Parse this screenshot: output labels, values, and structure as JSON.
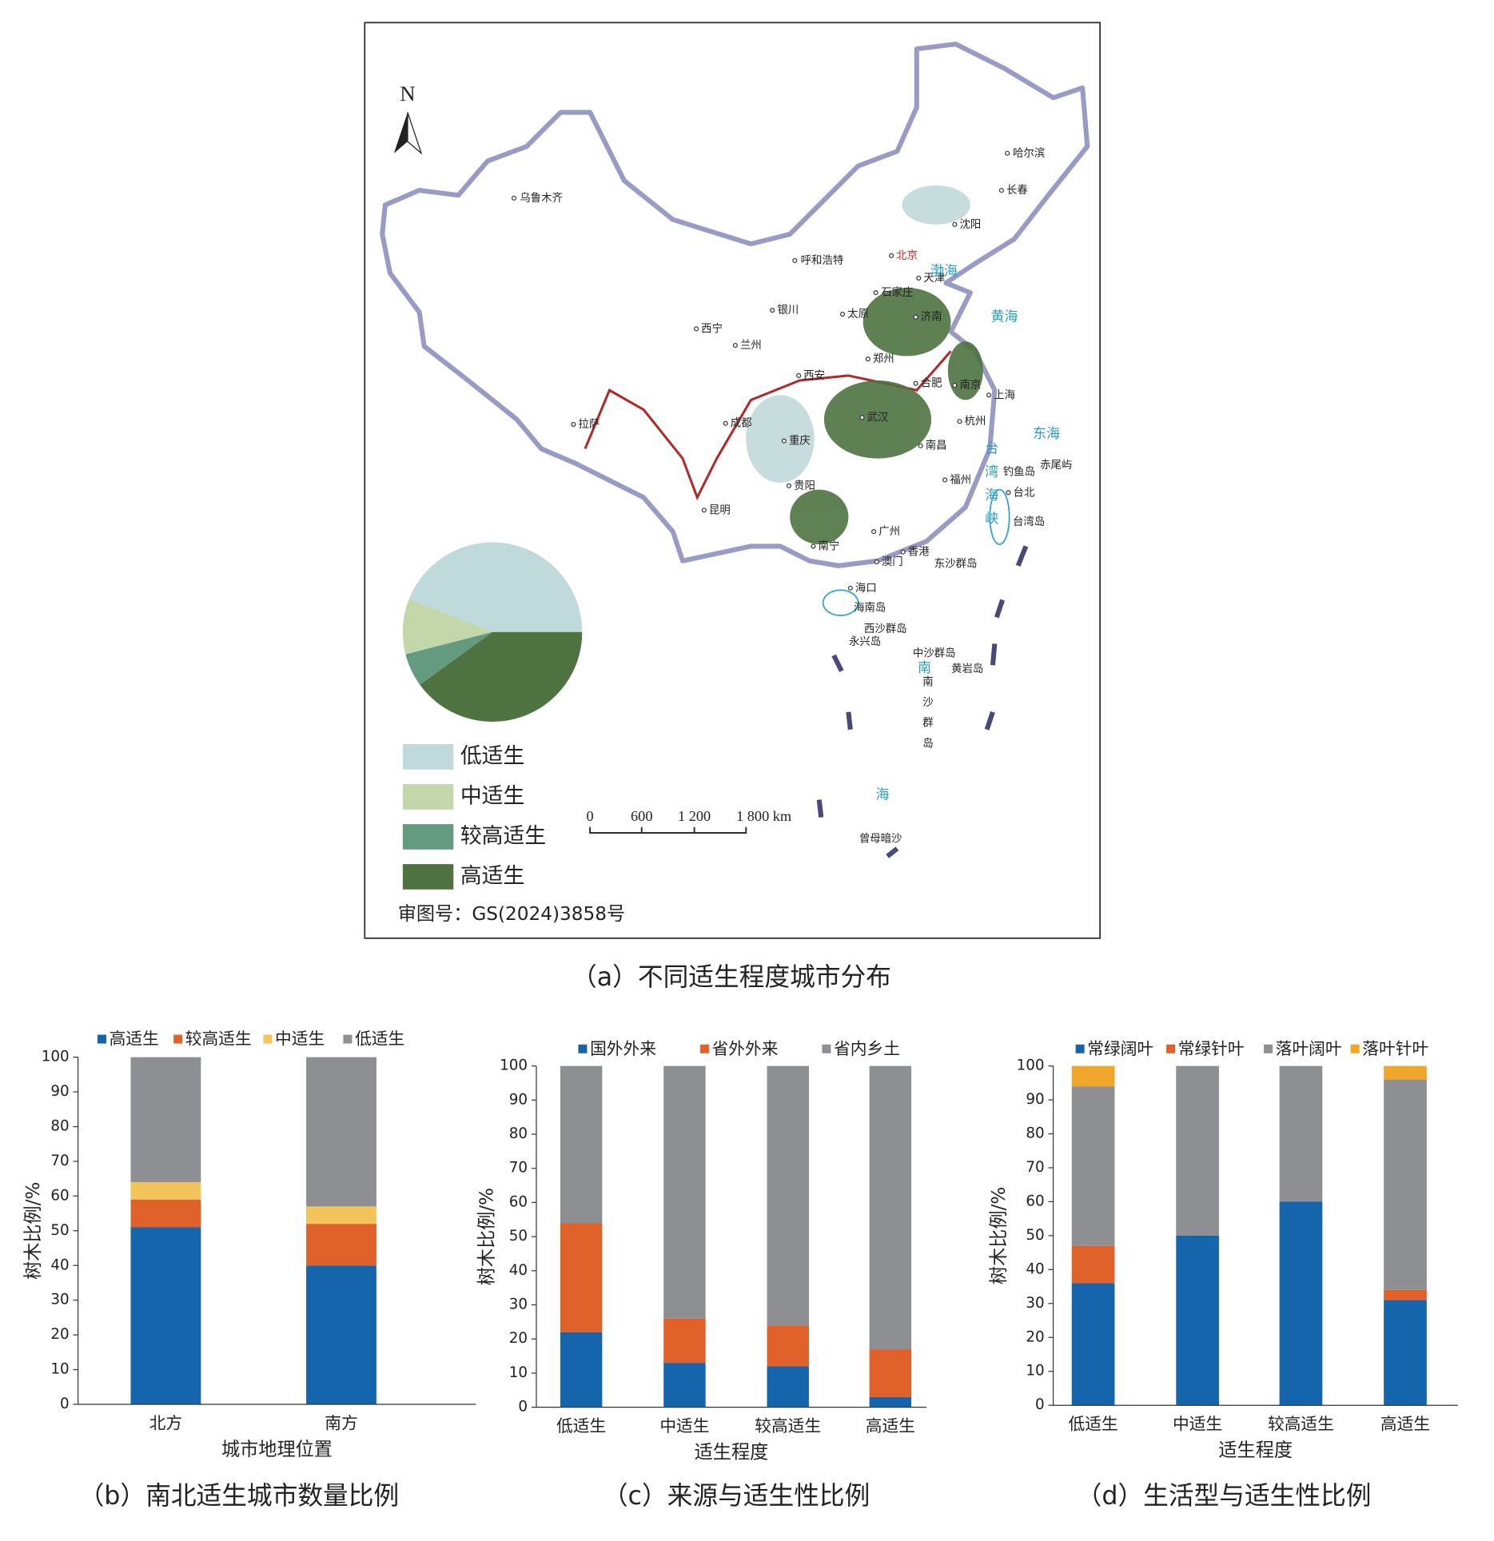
{
  "chart_data": [
    {
      "type": "pie",
      "caption": "（a）不同适生程度城市分布",
      "categories": [
        "低适生",
        "中适生",
        "较高适生",
        "高适生"
      ],
      "values": [
        44,
        10,
        6,
        40
      ],
      "colors": [
        "#c0d9da",
        "#c3d7ab",
        "#649a7f",
        "#4e7340"
      ]
    },
    {
      "type": "stacked-bar",
      "caption": "（b）南北适生城市数量比例",
      "x_label": "城市地理位置",
      "y_label": "树木比例/%",
      "categories": [
        "北方",
        "南方"
      ],
      "series": [
        {
          "name": "高适生",
          "color": "#1565ad",
          "values": [
            51,
            40
          ]
        },
        {
          "name": "较高适生",
          "color": "#e0612a",
          "values": [
            8,
            12
          ]
        },
        {
          "name": "中适生",
          "color": "#f2c45a",
          "values": [
            5,
            5
          ]
        },
        {
          "name": "低适生",
          "color": "#8e8f93",
          "values": [
            36,
            43
          ]
        }
      ],
      "ylim": [
        0,
        100
      ],
      "yticks": [
        0,
        10,
        20,
        30,
        40,
        50,
        60,
        70,
        80,
        90,
        100
      ]
    },
    {
      "type": "stacked-bar",
      "caption": "（c）来源与适生性比例",
      "x_label": "适生程度",
      "y_label": "树木比例/%",
      "categories": [
        "低适生",
        "中适生",
        "较高适生",
        "高适生"
      ],
      "series": [
        {
          "name": "国外外来",
          "color": "#1565ad",
          "values": [
            22,
            13,
            12,
            3
          ]
        },
        {
          "name": "省外外来",
          "color": "#e0612a",
          "values": [
            32,
            13,
            12,
            14
          ]
        },
        {
          "name": "省内乡土",
          "color": "#8e8f93",
          "values": [
            46,
            74,
            76,
            83
          ]
        }
      ],
      "ylim": [
        0,
        100
      ],
      "yticks": [
        0,
        10,
        20,
        30,
        40,
        50,
        60,
        70,
        80,
        90,
        100
      ]
    },
    {
      "type": "stacked-bar",
      "caption": "（d）生活型与适生性比例",
      "x_label": "适生程度",
      "y_label": "树木比例/%",
      "categories": [
        "低适生",
        "中适生",
        "较高适生",
        "高适生"
      ],
      "series": [
        {
          "name": "常绿阔叶",
          "color": "#1565ad",
          "values": [
            36,
            50,
            60,
            31
          ]
        },
        {
          "name": "常绿针叶",
          "color": "#e0612a",
          "values": [
            11,
            0,
            0,
            3
          ]
        },
        {
          "name": "落叶阔叶",
          "color": "#8e8f93",
          "values": [
            47,
            50,
            40,
            62
          ]
        },
        {
          "name": "落叶针叶",
          "color": "#f0a62a",
          "values": [
            6,
            0,
            0,
            4
          ]
        }
      ],
      "ylim": [
        0,
        100
      ],
      "yticks": [
        0,
        10,
        20,
        30,
        40,
        50,
        60,
        70,
        80,
        90,
        100
      ]
    }
  ],
  "map": {
    "north": "N",
    "scale_labels": [
      "0",
      "600",
      "1 200",
      "1 800 km"
    ],
    "approval": "审图号：GS(2024)3858号",
    "places": [
      "乌鲁木齐",
      "哈尔滨",
      "长春",
      "沈阳",
      "呼和浩特",
      "北京",
      "天津",
      "石家庄",
      "银川",
      "太原",
      "济南",
      "西宁",
      "兰州",
      "郑州",
      "西安",
      "合肥",
      "南京",
      "上海",
      "拉萨",
      "成都",
      "武汉",
      "杭州",
      "重庆",
      "南昌",
      "福州",
      "贵阳",
      "昆明",
      "台北",
      "南宁",
      "广州",
      "香港",
      "澳门",
      "海口",
      "渤海",
      "黄海",
      "东海",
      "钓鱼岛",
      "赤尾屿",
      "台湾岛",
      "东沙群岛",
      "海南岛",
      "西沙群岛",
      "永兴岛",
      "中沙群岛",
      "南",
      "黄岩岛",
      "南沙群岛",
      "海",
      "曾母暗沙",
      "台湾海峡"
    ]
  }
}
